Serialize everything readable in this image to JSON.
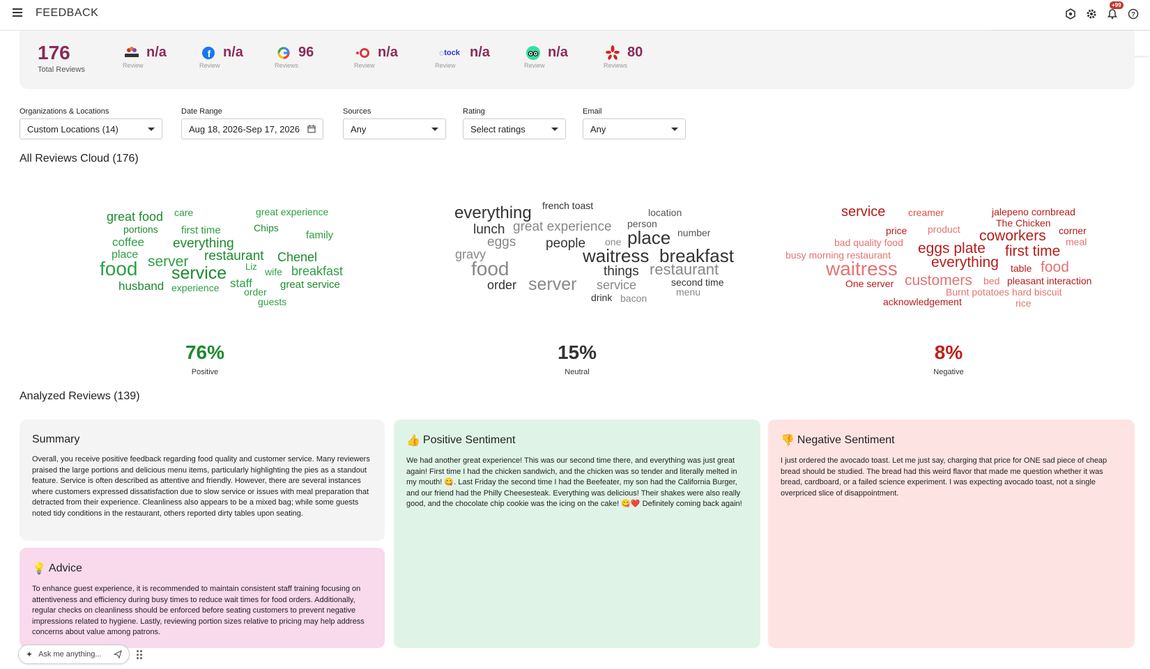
{
  "header": {
    "title": "FEEDBACK",
    "notification_badge": "+99"
  },
  "stats": {
    "total": {
      "value": "176",
      "label": "Total Reviews"
    },
    "sources": [
      {
        "icon": "bloom-logo-icon",
        "value": "n/a",
        "label": "Review"
      },
      {
        "icon": "facebook-icon",
        "value": "n/a",
        "label": "Review"
      },
      {
        "icon": "google-icon",
        "value": "96",
        "label": "Reviews"
      },
      {
        "icon": "opentable-icon",
        "value": "n/a",
        "label": "Review"
      },
      {
        "icon": "tock-icon",
        "tag": "tock",
        "value": "n/a",
        "label": "Review"
      },
      {
        "icon": "tripadvisor-icon",
        "value": "n/a",
        "label": "Review"
      },
      {
        "icon": "yelp-icon",
        "value": "80",
        "label": "Reviews"
      }
    ]
  },
  "filters": {
    "organizations": {
      "label": "Organizations & Locations",
      "value": "Custom Locations (14)"
    },
    "date_range": {
      "label": "Date Range",
      "value": "Aug 18, 2026-Sep 17, 2026"
    },
    "sources": {
      "label": "Sources",
      "value": "Any"
    },
    "rating": {
      "label": "Rating",
      "value": "Select ratings"
    },
    "email": {
      "label": "Email",
      "value": "Any"
    }
  },
  "clouds_title": "All Reviews Cloud (176)",
  "sentiment": {
    "positive": {
      "percent": "76%",
      "label": "Positive",
      "color": "#1e8a2e"
    },
    "neutral": {
      "percent": "15%",
      "label": "Neutral",
      "color": "#333333"
    },
    "negative": {
      "percent": "8%",
      "label": "Negative",
      "color": "#c0211a"
    }
  },
  "analyzed_title": "Analyzed Reviews (139)",
  "cards": {
    "summary": {
      "title": "Summary",
      "text": "Overall, you receive positive feedback regarding food quality and customer service. Many reviewers praised the large portions and delicious menu items, particularly highlighting the pies as a standout feature. Service is often described as attentive and friendly. However, there are several instances where customers expressed dissatisfaction due to slow service or issues with meal preparation that detracted from their experience. Cleanliness also appears to be a mixed bag; while some guests noted tidy conditions in the restaurant, others reported dirty tables upon seating."
    },
    "advice": {
      "title": "Advice",
      "text": "To enhance guest experience, it is recommended to maintain consistent staff training focusing on attentiveness and efficiency during busy times to reduce wait times for food orders. Additionally, regular checks on cleanliness should be enforced before seating customers to prevent negative impressions related to hygiene. Lastly, reviewing portion sizes relative to pricing may help address concerns about value among patrons."
    },
    "positive": {
      "title": "Positive Sentiment",
      "text": "We had another great experience! This was our second time there, and everything was just great again! First time I had the chicken sandwich, and the chicken was so tender and literally melted in my mouth! 😋. Last Friday the second time I had the Beefeater, my son had the California Burger, and our friend had the Philly Cheesesteak. Everything was delicious! Their shakes were also really good, and the chocolate chip cookie was the icing on the cake! 😋❤️ Definitely coming back again!"
    },
    "negative": {
      "title": "Negative Sentiment",
      "text": "I just ordered the avocado toast. Let me just say, charging that price for ONE sad piece of cheap bread should be studied. The bread had this weird flavor that made me question whether it was bread, cardboard, or a failed science experiment. I was expecting avocado toast, not a single overpriced slice of disappointment."
    }
  },
  "ask": {
    "placeholder": "Ask me anything..."
  },
  "cloud_positive": [
    "great food",
    "care",
    "great experience",
    "portions",
    "first time",
    "Chips",
    "family",
    "coffee",
    "everything",
    "place",
    "server",
    "restaurant",
    "Chenel",
    "food",
    "service",
    "Liz",
    "wife",
    "breakfast",
    "husband",
    "experience",
    "staff",
    "great service",
    "order",
    "guests"
  ],
  "cloud_neutral": [
    "french toast",
    "everything",
    "location",
    "person",
    "great experience",
    "lunch",
    "place",
    "number",
    "eggs",
    "one",
    "people",
    "gravy",
    "waitress",
    "breakfast",
    "food",
    "things",
    "restaurant",
    "order",
    "server",
    "service",
    "second time",
    "menu",
    "drink",
    "bacon"
  ],
  "cloud_negative": [
    "service",
    "creamer",
    "jalepeno cornbread",
    "The Chicken",
    "price",
    "product",
    "corner",
    "coworkers",
    "bad quality food",
    "meal",
    "eggs plate",
    "first time",
    "busy morning restaurant",
    "everything",
    "waitress",
    "table",
    "food",
    "customers",
    "One server",
    "bed",
    "pleasant interaction",
    "Burnt potatoes hard biscuit",
    "acknowledgement",
    "rice"
  ]
}
